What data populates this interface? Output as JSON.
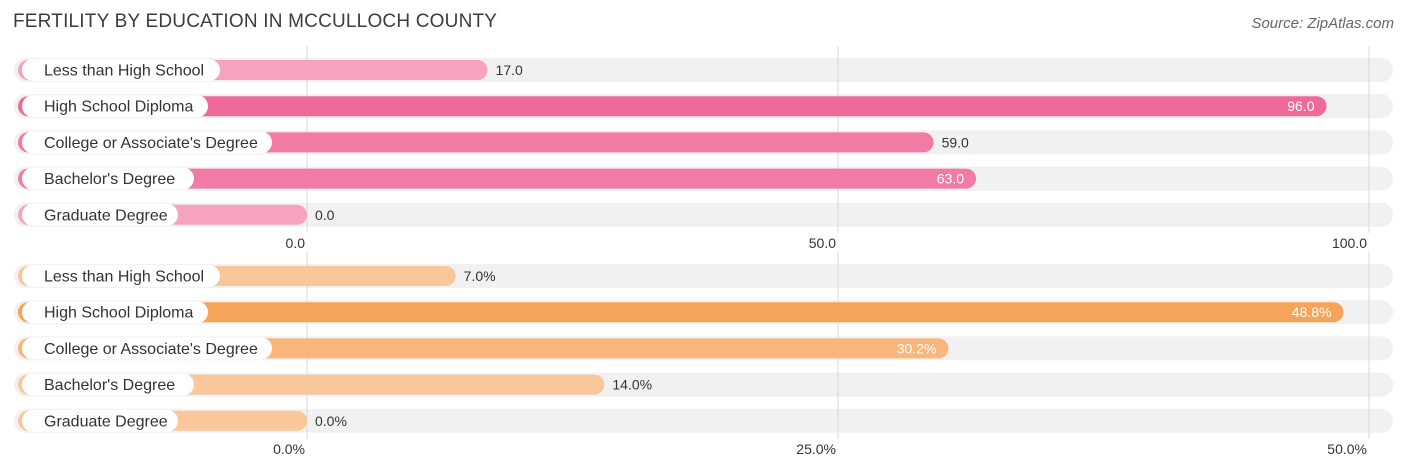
{
  "title": "FERTILITY BY EDUCATION IN MCCULLOCH COUNTY",
  "source": "Source: ZipAtlas.com",
  "colors": {
    "track": "#f1f1f1",
    "grid": "#d8d8d8",
    "label_text": "#333333",
    "value_text_dark": "#333333",
    "value_text_light": "#ffffff"
  },
  "chart_data": [
    {
      "type": "bar",
      "orientation": "horizontal",
      "categories": [
        "Less than High School",
        "High School Diploma",
        "College or Associate's Degree",
        "Bachelor's Degree",
        "Graduate Degree"
      ],
      "values": [
        17.0,
        96.0,
        59.0,
        63.0,
        0.0
      ],
      "value_labels": [
        "17.0",
        "96.0",
        "59.0",
        "63.0",
        "0.0"
      ],
      "value_label_inside": [
        false,
        true,
        false,
        true,
        false
      ],
      "bar_colors": [
        "#f6a3bf",
        "#ef6a99",
        "#f27ba5",
        "#f27ba5",
        "#f6a3bf"
      ],
      "xlim": [
        0,
        100
      ],
      "ticks": [
        0,
        50,
        100
      ],
      "tick_labels": [
        "0.0",
        "50.0",
        "100.0"
      ],
      "grid": true
    },
    {
      "type": "bar",
      "orientation": "horizontal",
      "categories": [
        "Less than High School",
        "High School Diploma",
        "College or Associate's Degree",
        "Bachelor's Degree",
        "Graduate Degree"
      ],
      "values": [
        7.0,
        48.8,
        30.2,
        14.0,
        0.0
      ],
      "value_labels": [
        "7.0%",
        "48.8%",
        "30.2%",
        "14.0%",
        "0.0%"
      ],
      "value_label_inside": [
        false,
        true,
        true,
        false,
        false
      ],
      "bar_colors": [
        "#f9c79a",
        "#f5a45a",
        "#f8b67a",
        "#f9c79a",
        "#f9c79a"
      ],
      "xlim": [
        0,
        50
      ],
      "ticks": [
        0,
        25,
        50
      ],
      "tick_labels": [
        "0.0%",
        "25.0%",
        "50.0%"
      ],
      "grid": true
    }
  ]
}
